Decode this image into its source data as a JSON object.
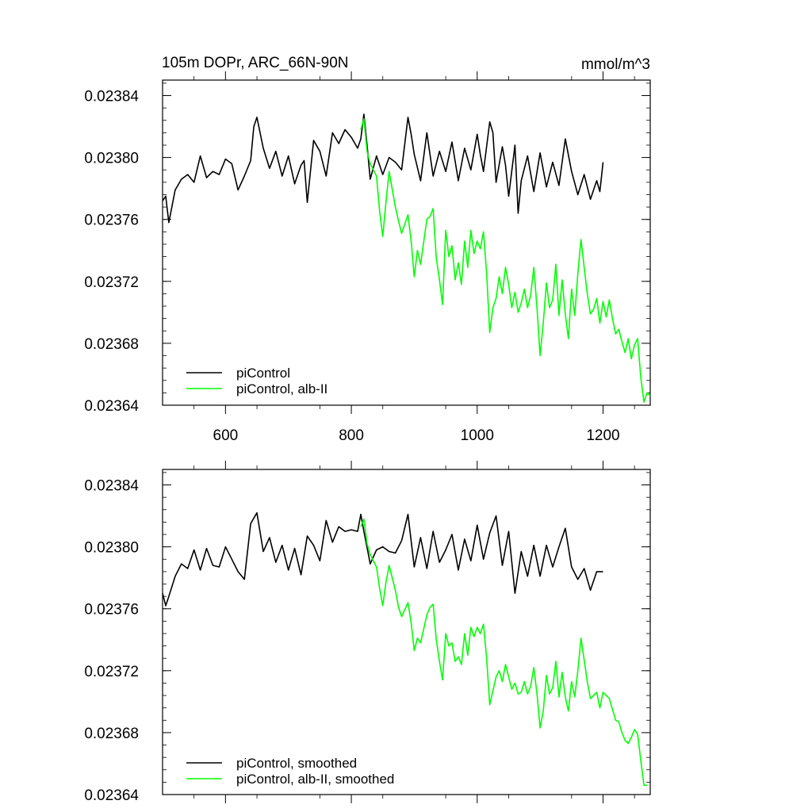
{
  "chart_data": [
    {
      "type": "line",
      "title": "105m DOPr, ARC_66N-90N",
      "units": "mmol/m^3",
      "xlim": [
        500,
        1275
      ],
      "ylim": [
        0.02364,
        0.02385
      ],
      "xticks": [
        600,
        800,
        1000,
        1200
      ],
      "yticks": [
        0.02364,
        0.02368,
        0.02372,
        0.02376,
        0.0238,
        0.02384
      ],
      "xtick_labels": [
        "600",
        "800",
        "1000",
        "1200"
      ],
      "ytick_labels": [
        "0.02364",
        "0.02368",
        "0.02372",
        "0.02376",
        "0.02380",
        "0.02384"
      ],
      "grid": false,
      "legend_position": "bottom-left",
      "series": [
        {
          "name": "piControl",
          "color": "#000000",
          "x": [
            500,
            505,
            510,
            520,
            530,
            540,
            550,
            560,
            570,
            580,
            590,
            600,
            610,
            620,
            630,
            640,
            645,
            650,
            660,
            670,
            680,
            690,
            700,
            710,
            720,
            725,
            730,
            740,
            750,
            760,
            770,
            780,
            790,
            800,
            810,
            815,
            820,
            825,
            830,
            840,
            850,
            860,
            870,
            880,
            890,
            895,
            900,
            910,
            920,
            930,
            940,
            950,
            960,
            970,
            980,
            990,
            1000,
            1005,
            1010,
            1020,
            1025,
            1030,
            1040,
            1045,
            1050,
            1060,
            1065,
            1070,
            1080,
            1090,
            1100,
            1110,
            1120,
            1130,
            1140,
            1150,
            1160,
            1170,
            1180,
            1190,
            1195,
            1200
          ],
          "y": [
            0.023772,
            0.023775,
            0.023758,
            0.023779,
            0.023786,
            0.023789,
            0.023784,
            0.023801,
            0.023787,
            0.023791,
            0.023789,
            0.023799,
            0.023796,
            0.023779,
            0.023788,
            0.023798,
            0.02382,
            0.023826,
            0.023806,
            0.023793,
            0.023804,
            0.023788,
            0.023801,
            0.023783,
            0.023795,
            0.023798,
            0.023771,
            0.023811,
            0.023804,
            0.023788,
            0.023816,
            0.023809,
            0.023818,
            0.023813,
            0.023806,
            0.023812,
            0.023828,
            0.023808,
            0.023786,
            0.023801,
            0.023789,
            0.0238,
            0.023797,
            0.023792,
            0.023826,
            0.023815,
            0.023802,
            0.023785,
            0.023816,
            0.023788,
            0.023804,
            0.023791,
            0.02381,
            0.023785,
            0.023806,
            0.023792,
            0.023815,
            0.023802,
            0.023791,
            0.023823,
            0.023816,
            0.023784,
            0.023807,
            0.023795,
            0.023775,
            0.023808,
            0.023764,
            0.023785,
            0.023801,
            0.023778,
            0.023803,
            0.023781,
            0.023797,
            0.023782,
            0.023812,
            0.023791,
            0.023776,
            0.023789,
            0.023773,
            0.023785,
            0.023778,
            0.023797
          ]
        },
        {
          "name": "piControl, alb-II",
          "color": "#00ff00",
          "x": [
            815,
            820,
            825,
            830,
            840,
            845,
            850,
            855,
            860,
            870,
            875,
            880,
            890,
            895,
            900,
            905,
            910,
            920,
            925,
            930,
            935,
            940,
            945,
            950,
            955,
            960,
            965,
            970,
            975,
            980,
            985,
            990,
            995,
            1000,
            1005,
            1010,
            1015,
            1020,
            1025,
            1030,
            1035,
            1040,
            1045,
            1050,
            1055,
            1060,
            1065,
            1070,
            1075,
            1080,
            1085,
            1090,
            1095,
            1100,
            1105,
            1110,
            1115,
            1120,
            1125,
            1130,
            1135,
            1140,
            1145,
            1150,
            1155,
            1160,
            1165,
            1170,
            1175,
            1180,
            1185,
            1190,
            1195,
            1200,
            1205,
            1210,
            1215,
            1220,
            1225,
            1230,
            1235,
            1240,
            1245,
            1250,
            1255,
            1260,
            1265,
            1270,
            1275
          ],
          "y": [
            0.023818,
            0.023825,
            0.023804,
            0.023796,
            0.023788,
            0.023765,
            0.023749,
            0.023771,
            0.023791,
            0.023768,
            0.023759,
            0.023751,
            0.023763,
            0.023746,
            0.023723,
            0.02374,
            0.023731,
            0.02376,
            0.023762,
            0.023767,
            0.023735,
            0.023721,
            0.023705,
            0.023753,
            0.023736,
            0.023743,
            0.023721,
            0.023732,
            0.023718,
            0.023746,
            0.023729,
            0.023753,
            0.023738,
            0.023746,
            0.023741,
            0.023752,
            0.023725,
            0.023687,
            0.023703,
            0.023709,
            0.023723,
            0.023712,
            0.023729,
            0.023718,
            0.023703,
            0.023713,
            0.0237,
            0.023706,
            0.023715,
            0.023703,
            0.023711,
            0.023729,
            0.023703,
            0.023672,
            0.023693,
            0.023719,
            0.023703,
            0.023708,
            0.023731,
            0.023698,
            0.023721,
            0.023699,
            0.023683,
            0.023715,
            0.023698,
            0.023725,
            0.023747,
            0.023729,
            0.023712,
            0.023699,
            0.023702,
            0.023709,
            0.023693,
            0.023707,
            0.023697,
            0.023708,
            0.023696,
            0.023686,
            0.023689,
            0.023681,
            0.023674,
            0.023683,
            0.02367,
            0.023679,
            0.023683,
            0.023658,
            0.023642,
            0.023648,
            0.023646
          ]
        }
      ]
    },
    {
      "type": "line",
      "title": "",
      "xlim": [
        500,
        1275
      ],
      "ylim": [
        0.02364,
        0.02385
      ],
      "xticks": [
        600,
        800,
        1000,
        1200
      ],
      "yticks": [
        0.02364,
        0.02368,
        0.02372,
        0.02376,
        0.0238,
        0.02384
      ],
      "ytick_labels": [
        "0.02364",
        "0.02368",
        "0.02372",
        "0.02376",
        "0.02380",
        "0.02384"
      ],
      "grid": false,
      "legend_position": "bottom-left",
      "series": [
        {
          "name": "piControl, smoothed",
          "color": "#000000",
          "x": [
            500,
            505,
            510,
            520,
            530,
            540,
            550,
            560,
            570,
            580,
            590,
            600,
            610,
            620,
            630,
            640,
            650,
            660,
            670,
            680,
            690,
            700,
            710,
            720,
            730,
            740,
            750,
            760,
            770,
            780,
            790,
            800,
            810,
            815,
            820,
            830,
            840,
            850,
            860,
            870,
            880,
            890,
            900,
            910,
            920,
            930,
            940,
            950,
            960,
            970,
            980,
            990,
            1000,
            1010,
            1020,
            1030,
            1040,
            1050,
            1060,
            1070,
            1080,
            1090,
            1100,
            1110,
            1120,
            1130,
            1140,
            1150,
            1160,
            1170,
            1180,
            1190,
            1200
          ],
          "y": [
            0.02377,
            0.023762,
            0.023768,
            0.023781,
            0.023789,
            0.023786,
            0.023798,
            0.023785,
            0.023799,
            0.023788,
            0.023787,
            0.0238,
            0.023792,
            0.023784,
            0.023779,
            0.023815,
            0.023822,
            0.023797,
            0.023806,
            0.02379,
            0.023801,
            0.023785,
            0.023799,
            0.023782,
            0.023807,
            0.023801,
            0.023791,
            0.023817,
            0.023803,
            0.023813,
            0.02381,
            0.023811,
            0.02381,
            0.023821,
            0.02381,
            0.023789,
            0.023798,
            0.0238,
            0.023797,
            0.023796,
            0.023804,
            0.023821,
            0.023787,
            0.023806,
            0.023786,
            0.02381,
            0.02379,
            0.023798,
            0.023808,
            0.023785,
            0.023805,
            0.023791,
            0.023814,
            0.023792,
            0.023809,
            0.02382,
            0.023788,
            0.02381,
            0.02377,
            0.023797,
            0.023781,
            0.023801,
            0.023781,
            0.023801,
            0.023787,
            0.0238,
            0.023812,
            0.023787,
            0.023779,
            0.023786,
            0.023772,
            0.023784,
            0.023784
          ]
        },
        {
          "name": "piControl, alb-II, smoothed",
          "color": "#00ff00",
          "x": [
            815,
            820,
            825,
            830,
            840,
            845,
            850,
            855,
            860,
            870,
            875,
            880,
            890,
            895,
            900,
            905,
            910,
            920,
            925,
            930,
            935,
            940,
            945,
            950,
            955,
            960,
            965,
            970,
            975,
            980,
            985,
            990,
            995,
            1000,
            1005,
            1010,
            1015,
            1020,
            1025,
            1030,
            1035,
            1040,
            1045,
            1050,
            1055,
            1060,
            1065,
            1070,
            1075,
            1080,
            1085,
            1090,
            1095,
            1100,
            1105,
            1110,
            1115,
            1120,
            1125,
            1130,
            1135,
            1140,
            1145,
            1150,
            1155,
            1160,
            1165,
            1170,
            1175,
            1180,
            1185,
            1190,
            1195,
            1200,
            1205,
            1210,
            1215,
            1220,
            1225,
            1230,
            1235,
            1240,
            1245,
            1250,
            1255,
            1260,
            1265,
            1270
          ],
          "y": [
            0.023813,
            0.023818,
            0.023802,
            0.023795,
            0.023787,
            0.023773,
            0.023762,
            0.023777,
            0.023788,
            0.023772,
            0.023761,
            0.023755,
            0.023764,
            0.023751,
            0.023733,
            0.023741,
            0.023738,
            0.023756,
            0.023761,
            0.023763,
            0.02374,
            0.023726,
            0.023714,
            0.023744,
            0.023736,
            0.023738,
            0.023726,
            0.023729,
            0.023724,
            0.023744,
            0.02373,
            0.023748,
            0.023742,
            0.023748,
            0.023744,
            0.02375,
            0.023728,
            0.023698,
            0.023707,
            0.023716,
            0.02372,
            0.023713,
            0.023724,
            0.023716,
            0.023708,
            0.023712,
            0.023705,
            0.023706,
            0.023713,
            0.023705,
            0.02371,
            0.023722,
            0.023705,
            0.023683,
            0.023694,
            0.023717,
            0.023705,
            0.023709,
            0.023726,
            0.023703,
            0.023719,
            0.023703,
            0.023694,
            0.023713,
            0.023703,
            0.02372,
            0.023741,
            0.023727,
            0.023713,
            0.023702,
            0.023704,
            0.023706,
            0.023696,
            0.023706,
            0.023704,
            0.023702,
            0.023695,
            0.023688,
            0.023687,
            0.02368,
            0.023675,
            0.023673,
            0.023677,
            0.023682,
            0.023679,
            0.023662,
            0.023646,
            0.023646
          ]
        }
      ]
    }
  ]
}
